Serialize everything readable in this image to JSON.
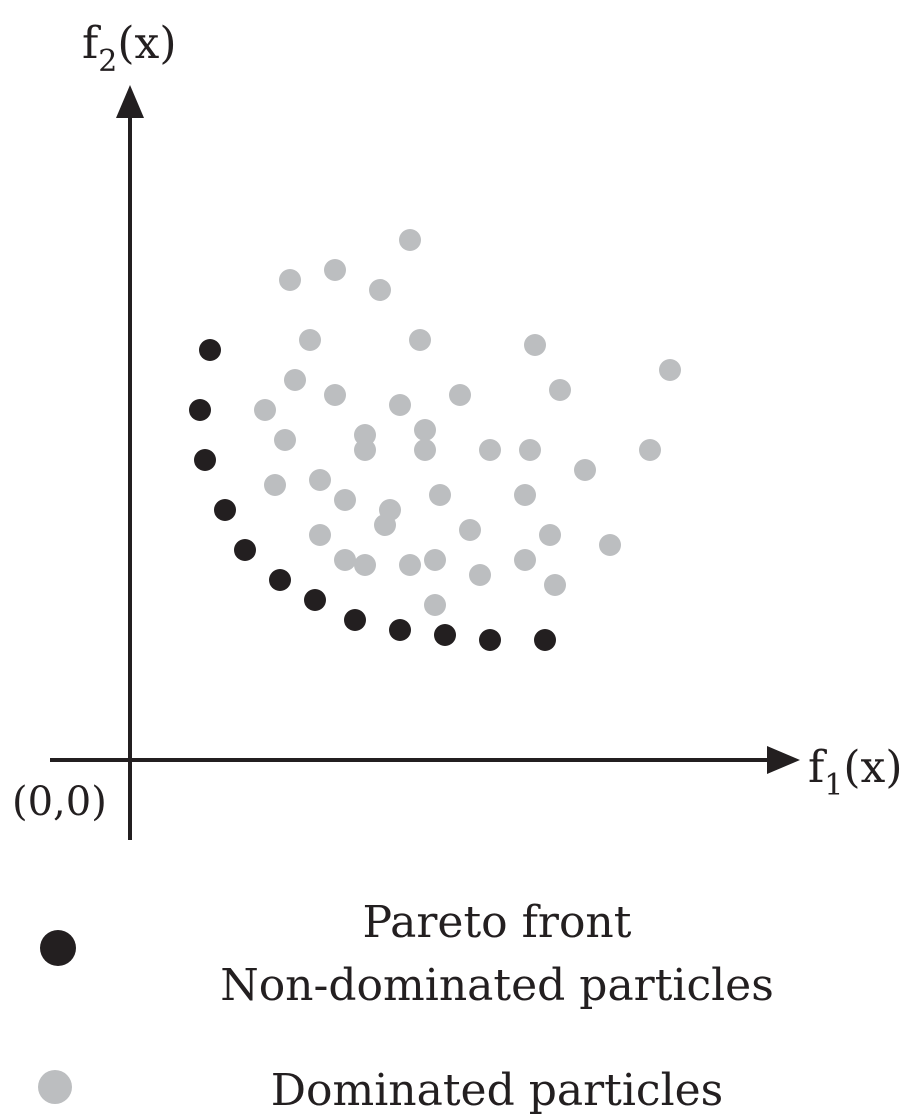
{
  "chart_data": {
    "type": "scatter",
    "x_axis_label": {
      "base": "f",
      "sub": "1",
      "tail": "(x)"
    },
    "y_axis_label": {
      "base": "f",
      "sub": "2",
      "tail": "(x)"
    },
    "origin_label": "(0,0)",
    "grid": false,
    "legend_placement": "bottom",
    "series": [
      {
        "role": "non-dominated",
        "color": "#231f20",
        "points": [
          [
            8,
            41
          ],
          [
            7,
            35
          ],
          [
            7.5,
            30
          ],
          [
            9.5,
            25
          ],
          [
            11.5,
            21
          ],
          [
            15,
            18
          ],
          [
            18.5,
            16
          ],
          [
            22.5,
            14
          ],
          [
            27,
            13
          ],
          [
            31.5,
            12.5
          ],
          [
            36,
            12
          ],
          [
            41.5,
            12
          ]
        ]
      },
      {
        "role": "dominated",
        "color": "#bcbec0",
        "points": [
          [
            28,
            52
          ],
          [
            16,
            48
          ],
          [
            20.5,
            49
          ],
          [
            25,
            47
          ],
          [
            18,
            42
          ],
          [
            29,
            42
          ],
          [
            40.5,
            41.5
          ],
          [
            16.5,
            38
          ],
          [
            20.5,
            36.5
          ],
          [
            13.5,
            35
          ],
          [
            27,
            35.5
          ],
          [
            33,
            36.5
          ],
          [
            43,
            37
          ],
          [
            54,
            39
          ],
          [
            15.5,
            32
          ],
          [
            23.5,
            32.5
          ],
          [
            23.5,
            31
          ],
          [
            29.5,
            33
          ],
          [
            29.5,
            31
          ],
          [
            36,
            31
          ],
          [
            40,
            31
          ],
          [
            52,
            31
          ],
          [
            14.5,
            27.5
          ],
          [
            19,
            28
          ],
          [
            21.5,
            26
          ],
          [
            26,
            25
          ],
          [
            31,
            26.5
          ],
          [
            39.5,
            26.5
          ],
          [
            45.5,
            29
          ],
          [
            25.5,
            23.5
          ],
          [
            19,
            22.5
          ],
          [
            34,
            23
          ],
          [
            42,
            22.5
          ],
          [
            48,
            21.5
          ],
          [
            21.5,
            20
          ],
          [
            23.5,
            19.5
          ],
          [
            28,
            19.5
          ],
          [
            30.5,
            20
          ],
          [
            35,
            18.5
          ],
          [
            39.5,
            20
          ],
          [
            42.5,
            17.5
          ],
          [
            30.5,
            15.5
          ]
        ]
      }
    ]
  },
  "legend": {
    "items": [
      {
        "color": "#231f20",
        "lines": [
          "Pareto front",
          "Non-dominated particles"
        ]
      },
      {
        "color": "#bcbec0",
        "lines": [
          "Dominated particles"
        ]
      }
    ]
  }
}
